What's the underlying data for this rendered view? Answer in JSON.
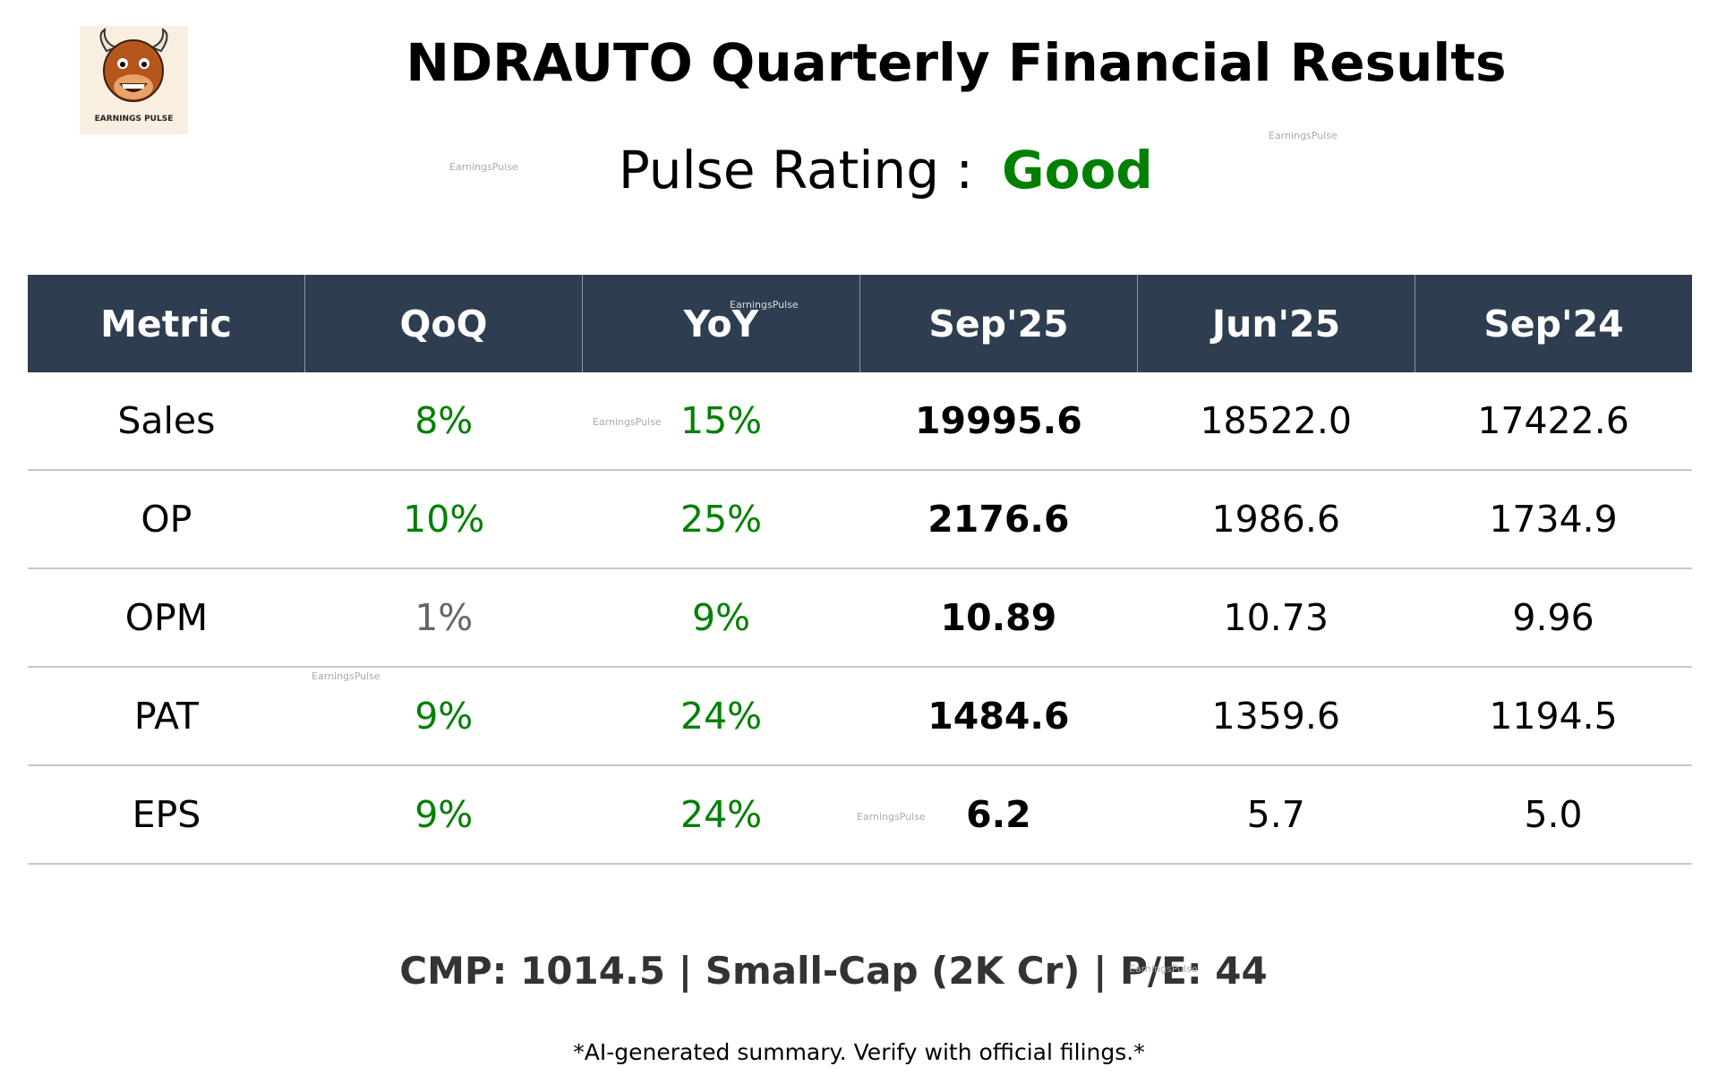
{
  "header": {
    "logo_text": "EARNINGS PULSE",
    "title": "NDRAUTO Quarterly Financial Results",
    "rating_label": "Pulse Rating :",
    "rating_value": "Good"
  },
  "table": {
    "columns": [
      "Metric",
      "QoQ",
      "YoY",
      "Sep'25",
      "Jun'25",
      "Sep'24"
    ],
    "rows": [
      [
        "Sales",
        "8%",
        "15%",
        "19995.6",
        "18522.0",
        "17422.6"
      ],
      [
        "OP",
        "10%",
        "25%",
        "2176.6",
        "1986.6",
        "1734.9"
      ],
      [
        "OPM",
        "1%",
        "9%",
        "10.89",
        "10.73",
        "9.96"
      ],
      [
        "PAT",
        "9%",
        "24%",
        "1484.6",
        "1359.6",
        "1194.5"
      ],
      [
        "EPS",
        "9%",
        "24%",
        "6.2",
        "5.7",
        "5.0"
      ]
    ]
  },
  "footer": {
    "summary": "CMP: 1014.5 | Small-Cap (2K Cr) | P/E: 44",
    "disclaimer": "*AI-generated summary. Verify with official filings.*"
  },
  "watermarks": [
    "EarningsPulse",
    "EarningsPulse",
    "EarningsPulse",
    "EarningsPulse",
    "EarningsPulse",
    "EarningsPulse",
    "EarningsPulse"
  ]
}
